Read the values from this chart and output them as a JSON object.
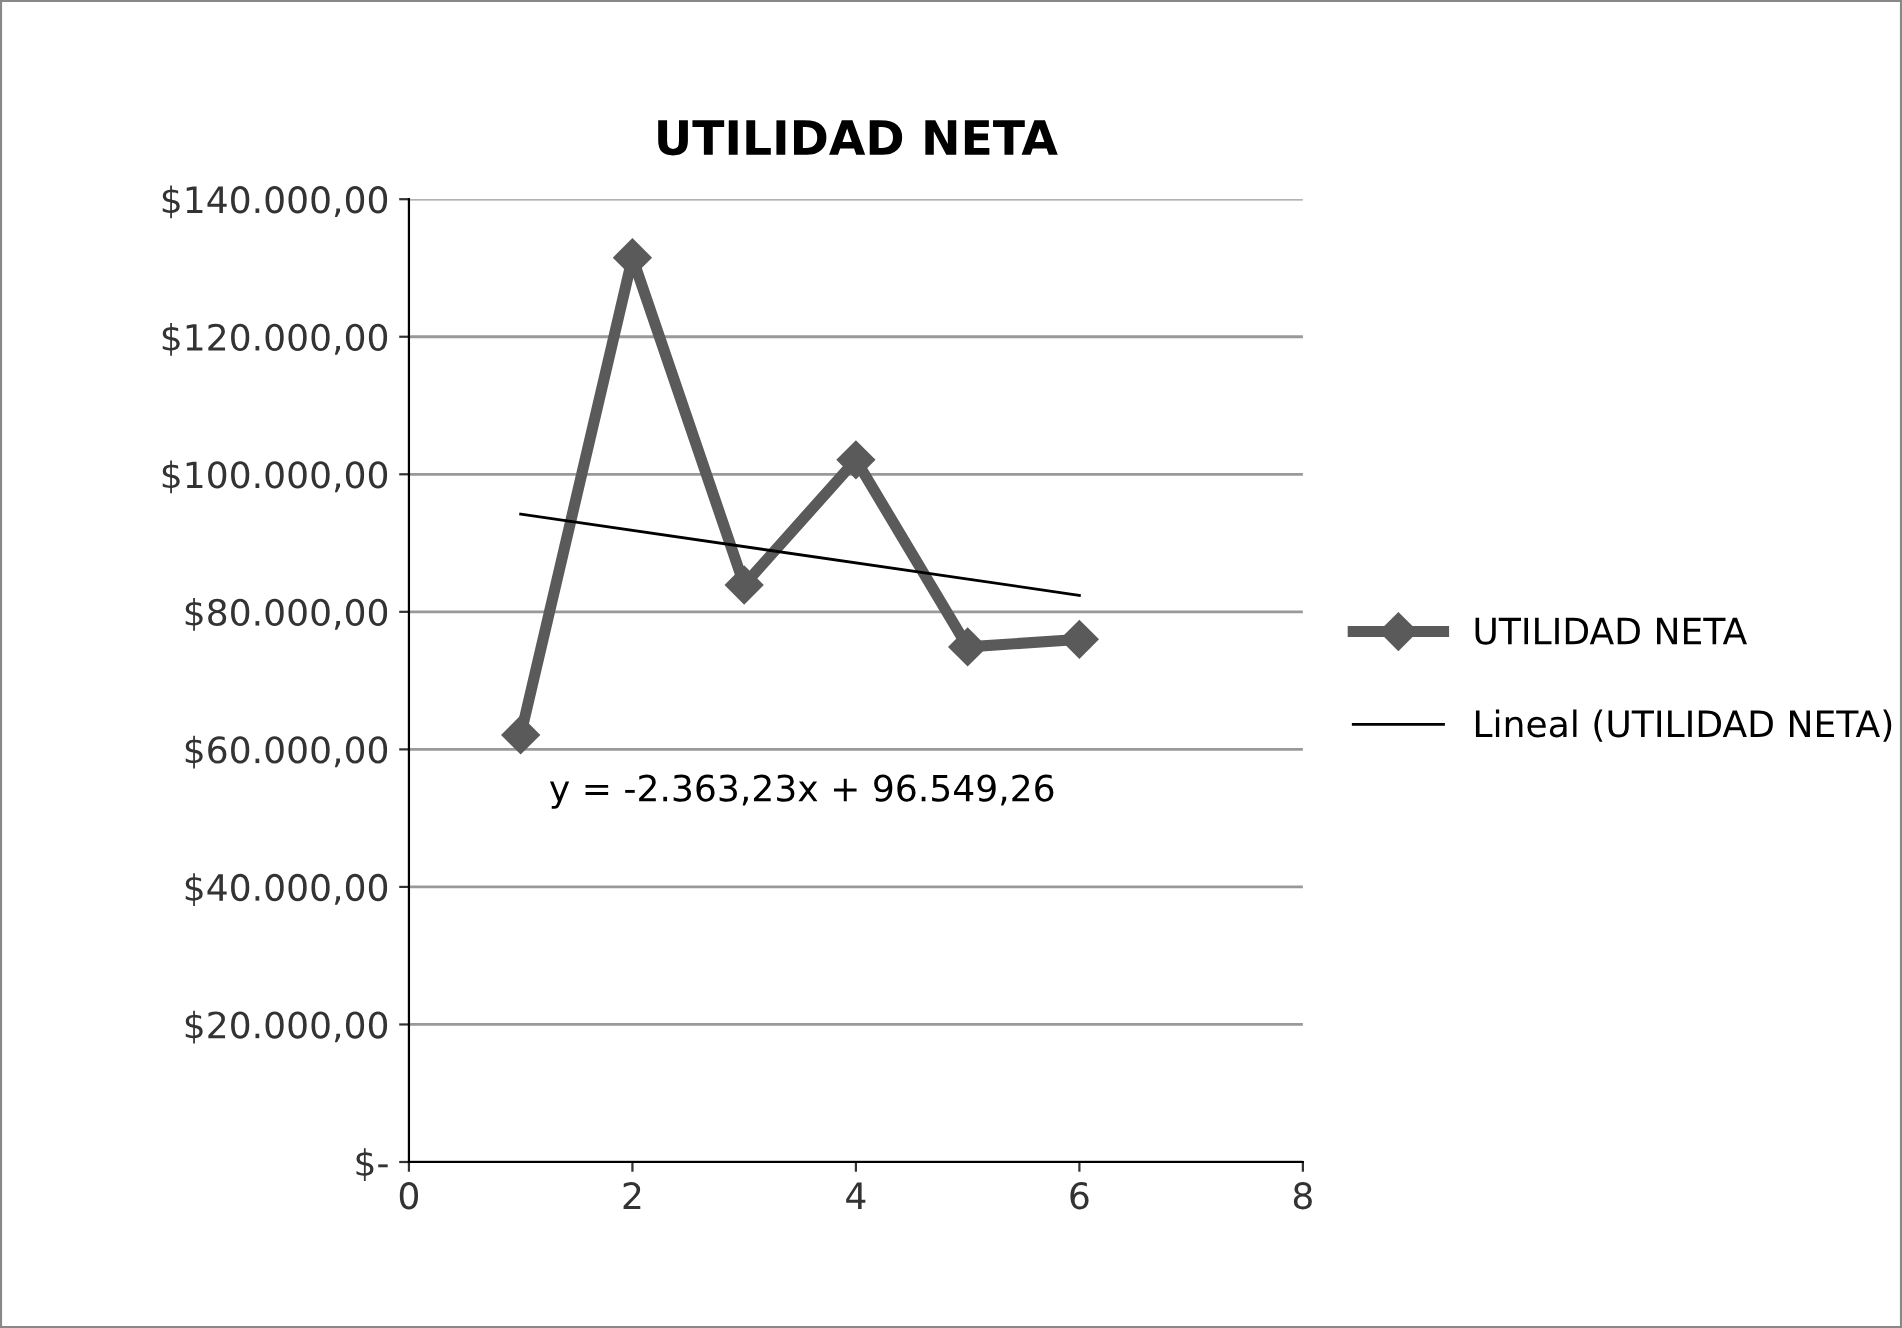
{
  "chart_data": {
    "type": "line",
    "title": "UTILIDAD NETA",
    "series": [
      {
        "name": "UTILIDAD NETA",
        "color": "#5a5a5a",
        "x": [
          1,
          2,
          3,
          4,
          5,
          6
        ],
        "values": [
          62100,
          131500,
          83900,
          102100,
          74900,
          76000
        ],
        "marker": "diamond"
      },
      {
        "name": "Lineal (UTILIDAD NETA)",
        "type": "line",
        "color": "#000000",
        "x": [
          1,
          6
        ],
        "values": [
          94200,
          82400
        ],
        "marker": "none"
      }
    ],
    "xlim": [
      0,
      8
    ],
    "xticks": [
      0,
      2,
      4,
      6,
      8
    ],
    "ylim": [
      0,
      140000
    ],
    "yticks": [
      {
        "value": 0,
        "label": "$-"
      },
      {
        "value": 20000,
        "label": "$20.000,00"
      },
      {
        "value": 40000,
        "label": "$40.000,00"
      },
      {
        "value": 60000,
        "label": "$60.000,00"
      },
      {
        "value": 80000,
        "label": "$80.000,00"
      },
      {
        "value": 100000,
        "label": "$100.000,00"
      },
      {
        "value": 120000,
        "label": "$120.000,00"
      },
      {
        "value": 140000,
        "label": "$140.000,00"
      }
    ],
    "grid": "y",
    "legend": "right",
    "annotations": [
      "y = -2.363,23x + 96.549,26"
    ]
  }
}
